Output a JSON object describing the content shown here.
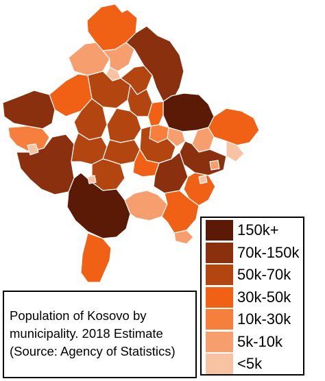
{
  "caption": {
    "line1": "Population of Kosovo by",
    "line2": "municipality. 2018 Estimate",
    "line3": "(Source: Agency of Statistics)"
  },
  "legend": [
    {
      "label": "150k+",
      "color": "#5a1a06"
    },
    {
      "label": "70k-150k",
      "color": "#8a300e"
    },
    {
      "label": "50k-70k",
      "color": "#b34510"
    },
    {
      "label": "30k-50k",
      "color": "#f06015"
    },
    {
      "label": "10k-30k",
      "color": "#f67f3d"
    },
    {
      "label": "5k-10k",
      "color": "#f79e6e"
    },
    {
      "label": "<5k",
      "color": "#f8c3a3"
    }
  ]
}
